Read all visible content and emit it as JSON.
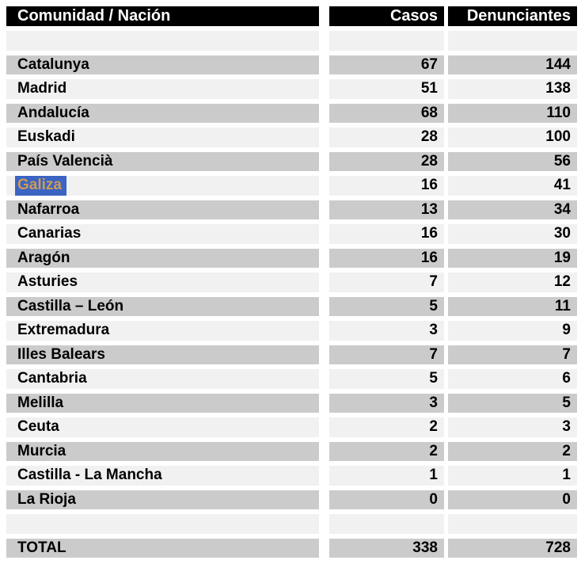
{
  "colors": {
    "page_bg": "#ffffff",
    "header_bg": "#000000",
    "header_text": "#ffffff",
    "gray_row": "#cbcbcb",
    "light_row": "#f1f1f1",
    "selection_bg": "#3b64c3",
    "selection_text": "#cf9b55",
    "body_text": "#000000"
  },
  "table": {
    "headers": [
      "Comunidad / Nación",
      "Casos",
      "Denunciantes"
    ],
    "rows": [
      {
        "type": "blank",
        "shade": "light"
      },
      {
        "name": "Catalunya",
        "casos": "67",
        "denunciantes": "144",
        "shade": "gray"
      },
      {
        "name": "Madrid",
        "casos": "51",
        "denunciantes": "138",
        "shade": "light"
      },
      {
        "name": "Andalucía",
        "casos": "68",
        "denunciantes": "110",
        "shade": "gray"
      },
      {
        "name": "Euskadi",
        "casos": "28",
        "denunciantes": "100",
        "shade": "light"
      },
      {
        "name": "País Valencià",
        "casos": "28",
        "denunciantes": "56",
        "shade": "gray"
      },
      {
        "name": "Galiza",
        "casos": "16",
        "denunciantes": "41",
        "shade": "light",
        "selected": true
      },
      {
        "name": "Nafarroa",
        "casos": "13",
        "denunciantes": "34",
        "shade": "gray"
      },
      {
        "name": "Canarias",
        "casos": "16",
        "denunciantes": "30",
        "shade": "light"
      },
      {
        "name": "Aragón",
        "casos": "16",
        "denunciantes": "19",
        "shade": "gray"
      },
      {
        "name": "Asturies",
        "casos": "7",
        "denunciantes": "12",
        "shade": "light"
      },
      {
        "name": "Castilla – León",
        "casos": "5",
        "denunciantes": "11",
        "shade": "gray"
      },
      {
        "name": "Extremadura",
        "casos": "3",
        "denunciantes": "9",
        "shade": "light"
      },
      {
        "name": "Illes Balears",
        "casos": "7",
        "denunciantes": "7",
        "shade": "gray"
      },
      {
        "name": "Cantabria",
        "casos": "5",
        "denunciantes": "6",
        "shade": "light"
      },
      {
        "name": "Melilla",
        "casos": "3",
        "denunciantes": "5",
        "shade": "gray"
      },
      {
        "name": "Ceuta",
        "casos": "2",
        "denunciantes": "3",
        "shade": "light"
      },
      {
        "name": "Murcia",
        "casos": "2",
        "denunciantes": "2",
        "shade": "gray"
      },
      {
        "name": "Castilla - La Mancha",
        "casos": "1",
        "denunciantes": "1",
        "shade": "light"
      },
      {
        "name": "La Rioja",
        "casos": "0",
        "denunciantes": "0",
        "shade": "gray"
      },
      {
        "type": "blank",
        "shade": "light"
      },
      {
        "name": "TOTAL",
        "casos": "338",
        "denunciantes": "728",
        "shade": "gray",
        "total": true
      }
    ]
  },
  "chart_data": {
    "type": "table",
    "title": "Casos y denunciantes por Comunidad / Nación",
    "columns": [
      "Comunidad / Nación",
      "Casos",
      "Denunciantes"
    ],
    "rows": [
      [
        "Catalunya",
        67,
        144
      ],
      [
        "Madrid",
        51,
        138
      ],
      [
        "Andalucía",
        68,
        110
      ],
      [
        "Euskadi",
        28,
        100
      ],
      [
        "País Valencià",
        28,
        56
      ],
      [
        "Galiza",
        16,
        41
      ],
      [
        "Nafarroa",
        13,
        34
      ],
      [
        "Canarias",
        16,
        30
      ],
      [
        "Aragón",
        16,
        19
      ],
      [
        "Asturies",
        7,
        12
      ],
      [
        "Castilla – León",
        5,
        11
      ],
      [
        "Extremadura",
        3,
        9
      ],
      [
        "Illes Balears",
        7,
        7
      ],
      [
        "Cantabria",
        5,
        6
      ],
      [
        "Melilla",
        3,
        5
      ],
      [
        "Ceuta",
        2,
        3
      ],
      [
        "Murcia",
        2,
        2
      ],
      [
        "Castilla - La Mancha",
        1,
        1
      ],
      [
        "La Rioja",
        0,
        0
      ]
    ],
    "total_row": [
      "TOTAL",
      338,
      728
    ],
    "selected_cell": "Galiza",
    "layout": {
      "striped": true,
      "header_style": "black-bar",
      "value_alignment": "right"
    }
  }
}
